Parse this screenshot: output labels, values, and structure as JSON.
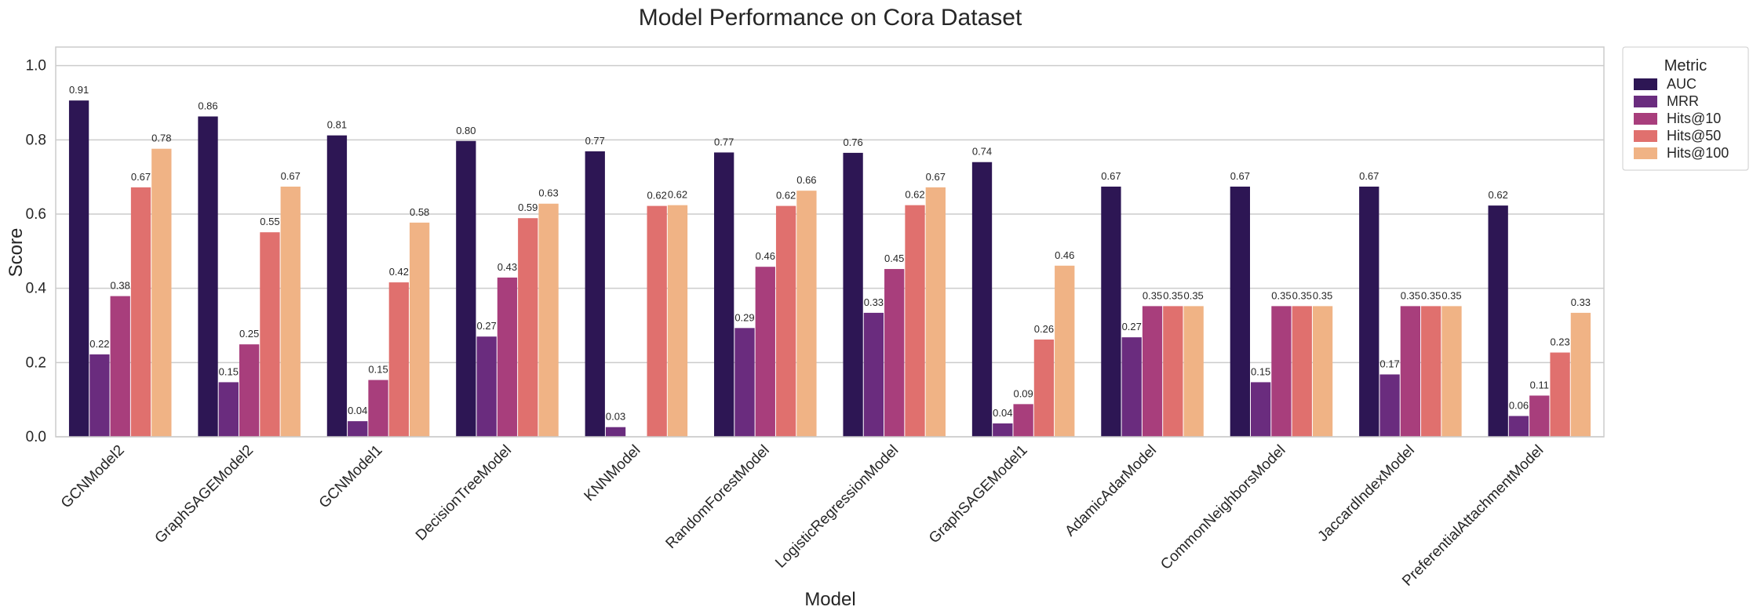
{
  "chart_data": {
    "type": "bar",
    "title": "Model Performance on Cora Dataset",
    "xlabel": "Model",
    "ylabel": "Score",
    "ylim": [
      0,
      1.05
    ],
    "yticks": [
      "0.0",
      "0.2",
      "0.4",
      "0.6",
      "0.8",
      "1.0"
    ],
    "grid": true,
    "legend": {
      "title": "Metric",
      "placement": "outside-top-right"
    },
    "categories": [
      "GCNModel2",
      "GraphSAGEModel2",
      "GCNModel1",
      "DecisionTreeModel",
      "KNNModel",
      "RandomForestModel",
      "LogisticRegressionModel",
      "GraphSAGEModel1",
      "AdamicAdarModel",
      "CommonNeighborsModel",
      "JaccardIndexModel",
      "PreferentialAttachmentModel"
    ],
    "series": [
      {
        "name": "AUC",
        "color": "#2d1654",
        "values": [
          0.906,
          0.863,
          0.812,
          0.797,
          0.769,
          0.766,
          0.765,
          0.74,
          0.674,
          0.674,
          0.674,
          0.623
        ],
        "labels": [
          "0.91",
          "0.86",
          "0.81",
          "0.80",
          "0.77",
          "0.77",
          "0.76",
          "0.74",
          "0.67",
          "0.67",
          "0.67",
          "0.62"
        ]
      },
      {
        "name": "MRR",
        "color": "#6a2c7e",
        "values": [
          0.222,
          0.147,
          0.042,
          0.27,
          0.026,
          0.293,
          0.334,
          0.036,
          0.268,
          0.147,
          0.168,
          0.056
        ],
        "labels": [
          "0.22",
          "0.15",
          "0.04",
          "0.27",
          "0.03",
          "0.29",
          "0.33",
          "0.04",
          "0.27",
          "0.15",
          "0.17",
          "0.06"
        ]
      },
      {
        "name": "Hits@10",
        "color": "#a83e7c",
        "values": [
          0.379,
          0.249,
          0.153,
          0.429,
          0.0,
          0.458,
          0.452,
          0.088,
          0.352,
          0.352,
          0.352,
          0.111
        ],
        "labels": [
          "0.38",
          "0.25",
          "0.15",
          "0.43",
          "",
          "0.46",
          "0.45",
          "0.09",
          "0.35",
          "0.35",
          "0.35",
          "0.11"
        ]
      },
      {
        "name": "Hits@50",
        "color": "#e0706e",
        "values": [
          0.672,
          0.551,
          0.416,
          0.589,
          0.622,
          0.622,
          0.624,
          0.262,
          0.352,
          0.352,
          0.352,
          0.227
        ],
        "labels": [
          "0.67",
          "0.55",
          "0.42",
          "0.59",
          "0.62",
          "0.62",
          "0.62",
          "0.26",
          "0.35",
          "0.35",
          "0.35",
          "0.23"
        ]
      },
      {
        "name": "Hits@100",
        "color": "#f0b385",
        "values": [
          0.776,
          0.674,
          0.577,
          0.628,
          0.624,
          0.663,
          0.672,
          0.461,
          0.352,
          0.352,
          0.352,
          0.334
        ],
        "labels": [
          "0.78",
          "0.67",
          "0.58",
          "0.63",
          "0.62",
          "0.66",
          "0.67",
          "0.46",
          "0.35",
          "0.35",
          "0.35",
          "0.33"
        ]
      }
    ]
  }
}
